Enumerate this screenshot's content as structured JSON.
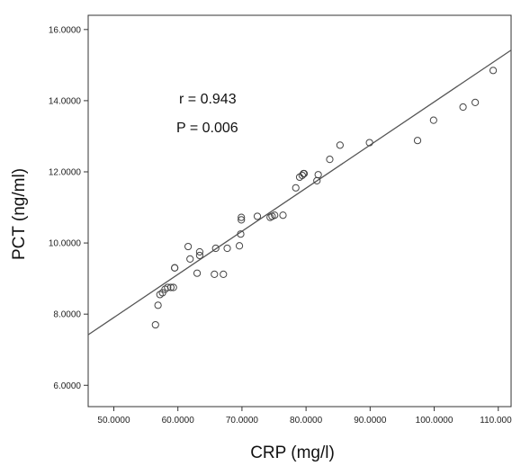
{
  "chart_data": {
    "type": "scatter",
    "xlabel": "CRP (mg/l)",
    "ylabel": "PCT (ng/ml)",
    "xlim": [
      46,
      112
    ],
    "ylim": [
      5.4,
      16.4
    ],
    "x_ticks": [
      50,
      60,
      70,
      80,
      90,
      100,
      110
    ],
    "x_tick_labels": [
      "50.0000",
      "60.0000",
      "70.0000",
      "80.0000",
      "90.0000",
      "100.0000",
      "110.0000"
    ],
    "y_ticks": [
      6,
      8,
      10,
      12,
      14,
      16
    ],
    "y_tick_labels": [
      "6.0000",
      "8.0000",
      "10.0000",
      "12.0000",
      "14.0000",
      "16.0000"
    ],
    "grid": false,
    "marker": "open-circle",
    "annotations": [
      "r = 0.943",
      "P = 0.006"
    ],
    "fit_line": {
      "x": [
        46,
        112
      ],
      "y": [
        7.42,
        15.42
      ]
    },
    "points": {
      "x": [
        56.5,
        56.9,
        57.2,
        57.6,
        58.0,
        58.4,
        58.9,
        59.3,
        59.5,
        59.5,
        61.6,
        61.9,
        63.0,
        63.4,
        63.4,
        65.7,
        65.9,
        67.1,
        67.7,
        69.6,
        69.8,
        69.9,
        69.9,
        72.4,
        74.4,
        74.7,
        75.1,
        76.4,
        78.4,
        79.0,
        79.4,
        79.6,
        79.7,
        81.7,
        81.9,
        83.7,
        85.3,
        89.9,
        97.4,
        99.9,
        104.5,
        106.4,
        109.2
      ],
      "y": [
        7.7,
        8.25,
        8.55,
        8.6,
        8.7,
        8.75,
        8.75,
        8.75,
        9.3,
        9.3,
        9.9,
        9.55,
        9.15,
        9.65,
        9.75,
        9.12,
        9.85,
        9.12,
        9.85,
        9.92,
        10.25,
        10.65,
        10.72,
        10.75,
        10.72,
        10.75,
        10.78,
        10.78,
        11.55,
        11.85,
        11.9,
        11.95,
        11.95,
        11.75,
        11.92,
        12.35,
        12.75,
        12.82,
        12.88,
        13.45,
        13.82,
        13.95,
        14.85
      ]
    }
  }
}
